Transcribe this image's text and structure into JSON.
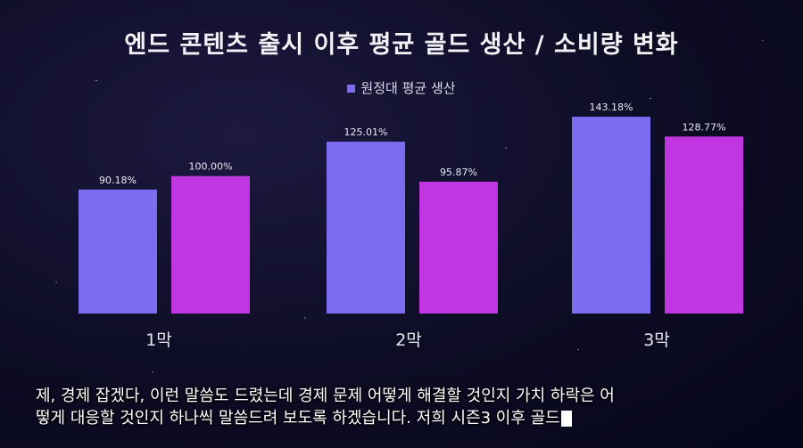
{
  "chart_data": {
    "type": "bar",
    "title": "엔드 콘텐츠 출시 이후 평균 골드 생산 / 소비량 변화",
    "categories": [
      "1막",
      "2막",
      "3막"
    ],
    "series": [
      {
        "name": "원정대 평균 생산",
        "values": [
          90.18,
          125.01,
          143.18
        ],
        "labels": [
          "90.18%",
          "125.01%",
          "143.18%"
        ],
        "color": "#7b6cf0"
      },
      {
        "name": "",
        "values": [
          100.0,
          95.87,
          128.77
        ],
        "labels": [
          "100.00%",
          "95.87%",
          "128.77%"
        ],
        "color": "#c036e0"
      }
    ],
    "ylim": [
      0,
      145
    ],
    "grid": false,
    "legend_position": "top-center"
  },
  "subtitles": {
    "line1": "제, 경제 잡겠다, 이런 말씀도 드렸는데 경제 문제 어떻게 해결할 것인지 가치 하락은 어",
    "line2": "떻게 대응할 것인지 하나씩 말씀드려 보도록 하겠습니다. 저희 시즌3 이후 골드"
  },
  "colors": {
    "background": "#0d0c24",
    "axis_text": "#e6e6ee"
  }
}
